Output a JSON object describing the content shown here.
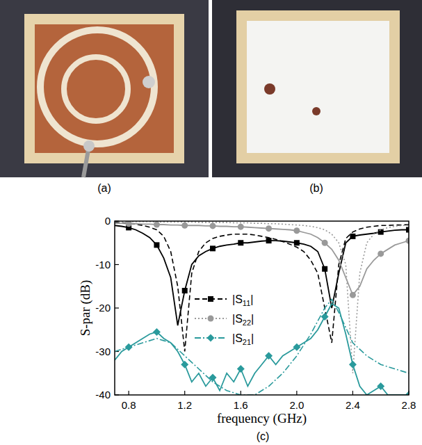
{
  "panel_labels": [
    "(a)",
    "(b)",
    "(c)"
  ],
  "chart_data": {
    "type": "line",
    "x_label": "frequency (GHz)",
    "y_label": "S-par (dB)",
    "x": [
      0.7,
      0.75,
      0.8,
      0.85,
      0.9,
      0.95,
      1.0,
      1.05,
      1.1,
      1.15,
      1.2,
      1.25,
      1.3,
      1.35,
      1.4,
      1.45,
      1.5,
      1.55,
      1.6,
      1.65,
      1.7,
      1.75,
      1.8,
      1.85,
      1.9,
      1.95,
      2.0,
      2.05,
      2.1,
      2.15,
      2.2,
      2.25,
      2.3,
      2.35,
      2.4,
      2.45,
      2.5,
      2.55,
      2.6,
      2.65,
      2.7,
      2.75,
      2.8
    ],
    "xlim": [
      0.7,
      2.8
    ],
    "xticks": [
      0.8,
      1.2,
      1.6,
      {
        "value": 2,
        "label": "2.0"
      },
      2.4,
      2.8
    ],
    "ylim": [
      -40,
      0
    ],
    "yticks": [
      0,
      -10,
      -20,
      -30,
      -40
    ],
    "legend": "left",
    "series": [
      {
        "color": "#000000",
        "line_style": "solid",
        "marker": "square",
        "values": [
          -1,
          -1.2,
          -1.5,
          -2,
          -2.8,
          -3.8,
          -5.5,
          -8.5,
          -13,
          -24,
          -16,
          -10,
          -8,
          -7,
          -6.3,
          -5.8,
          -5.5,
          -5.3,
          -5,
          -5,
          -4.8,
          -4.6,
          -4.5,
          -4.5,
          -4.6,
          -4.8,
          -5,
          -5.3,
          -5.8,
          -7,
          -11,
          -20,
          -12,
          -5,
          -3.5,
          -3.2,
          -3,
          -2.8,
          -2.5,
          -2.3,
          -2.1,
          -2,
          -2
        ]
      },
      {
        "name": "|S11|",
        "color": "#000000",
        "line_style": "dashed",
        "values": [
          -0.3,
          -0.4,
          -0.5,
          -0.7,
          -1,
          -1.4,
          -2,
          -3.5,
          -7,
          -15,
          -30,
          -12,
          -7,
          -5,
          -4,
          -3.5,
          -3.2,
          -3,
          -3,
          -3,
          -3.2,
          -3.5,
          -3.8,
          -4.2,
          -4.7,
          -5.3,
          -6,
          -7,
          -9,
          -12,
          -20,
          -28,
          -10,
          -4,
          -2.5,
          -1.8,
          -1.4,
          -1.2,
          -1,
          -1,
          -0.9,
          -0.9,
          -0.8
        ]
      },
      {
        "color": "#999999",
        "line_style": "solid",
        "marker": "circle",
        "values": [
          -0.5,
          -0.5,
          -0.6,
          -0.6,
          -0.7,
          -0.7,
          -0.8,
          -0.8,
          -0.9,
          -0.9,
          -1,
          -1,
          -1,
          -1.1,
          -1.1,
          -1.2,
          -1.2,
          -1.3,
          -1.3,
          -1.4,
          -1.5,
          -1.6,
          -1.7,
          -1.8,
          -1.9,
          -2,
          -2.2,
          -2.6,
          -3,
          -3.8,
          -5,
          -6.5,
          -9,
          -13,
          -17,
          -15,
          -11,
          -9,
          -7.5,
          -6.5,
          -5.5,
          -5,
          -4.5
        ]
      },
      {
        "name": "|S22|",
        "color": "#999999",
        "line_style": "dotted",
        "values": [
          -0.1,
          -0.1,
          -0.1,
          -0.1,
          -0.1,
          -0.1,
          -0.2,
          -0.2,
          -0.2,
          -0.2,
          -0.2,
          -0.2,
          -0.3,
          -0.3,
          -0.3,
          -0.3,
          -0.3,
          -0.4,
          -0.4,
          -0.4,
          -0.5,
          -0.5,
          -0.6,
          -0.6,
          -0.7,
          -0.8,
          -0.9,
          -1,
          -1.2,
          -1.5,
          -2,
          -3,
          -5,
          -10,
          -35,
          -12,
          -5,
          -3,
          -2,
          -1.5,
          -1.2,
          -1,
          -1
        ]
      },
      {
        "color": "#2a9a9c",
        "line_style": "solid",
        "marker": "diamond",
        "values": [
          -32,
          -30,
          -29,
          -28,
          -27,
          -26,
          -25.5,
          -27,
          -28,
          -30,
          -33,
          -37,
          -35,
          -38,
          -36,
          -39,
          -35,
          -37,
          -34,
          -38,
          -35,
          -33,
          -31,
          -33,
          -31,
          -30,
          -29,
          -28,
          -27,
          -25,
          -22,
          -19,
          -20,
          -26,
          -33,
          -38,
          -40,
          -39,
          -38,
          -40,
          -40,
          -40,
          -40
        ]
      },
      {
        "name": "|S21|",
        "color": "#2a9a9c",
        "line_style": "dashdot",
        "values": [
          -30,
          -29.5,
          -29,
          -28.5,
          -28,
          -27.5,
          -27,
          -27.5,
          -28,
          -29.5,
          -31,
          -32.5,
          -34,
          -35.5,
          -37,
          -38,
          -39,
          -39.5,
          -40,
          -40,
          -40,
          -39,
          -38,
          -36.5,
          -35,
          -33,
          -31,
          -28.5,
          -26,
          -23,
          -20,
          -18,
          -21,
          -24.5,
          -28,
          -29.5,
          -31,
          -32,
          -33,
          -33.5,
          -34,
          -34.5,
          -35
        ]
      }
    ]
  }
}
